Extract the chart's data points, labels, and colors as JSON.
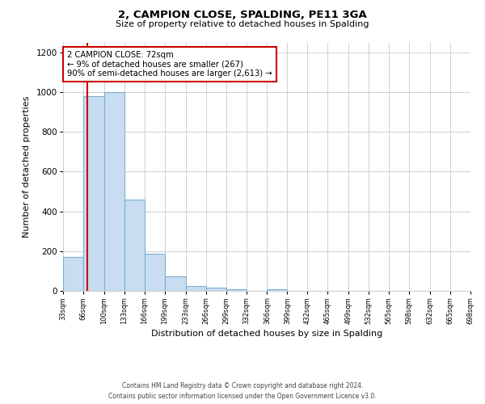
{
  "title": "2, CAMPION CLOSE, SPALDING, PE11 3GA",
  "subtitle": "Size of property relative to detached houses in Spalding",
  "xlabel": "Distribution of detached houses by size in Spalding",
  "ylabel": "Number of detached properties",
  "bar_edges": [
    33,
    66,
    100,
    133,
    166,
    199,
    233,
    266,
    299,
    332,
    366,
    399,
    432,
    465,
    499,
    532,
    565,
    598,
    632,
    665,
    698
  ],
  "bar_heights": [
    170,
    980,
    1000,
    460,
    185,
    75,
    25,
    15,
    10,
    0,
    10,
    0,
    0,
    0,
    0,
    0,
    0,
    0,
    0,
    0
  ],
  "bar_color": "#c8ddf0",
  "bar_edgecolor": "#7bafd4",
  "property_line_x": 72,
  "property_line_color": "#cc0000",
  "ylim": [
    0,
    1250
  ],
  "yticks": [
    0,
    200,
    400,
    600,
    800,
    1000,
    1200
  ],
  "annotation_title": "2 CAMPION CLOSE: 72sqm",
  "annotation_line1": "← 9% of detached houses are smaller (267)",
  "annotation_line2": "90% of semi-detached houses are larger (2,613) →",
  "annotation_box_color": "#ffffff",
  "annotation_box_edgecolor": "#cc0000",
  "footer_line1": "Contains HM Land Registry data © Crown copyright and database right 2024.",
  "footer_line2": "Contains public sector information licensed under the Open Government Licence v3.0.",
  "tick_labels": [
    "33sqm",
    "66sqm",
    "100sqm",
    "133sqm",
    "166sqm",
    "199sqm",
    "233sqm",
    "266sqm",
    "299sqm",
    "332sqm",
    "366sqm",
    "399sqm",
    "432sqm",
    "465sqm",
    "499sqm",
    "532sqm",
    "565sqm",
    "598sqm",
    "632sqm",
    "665sqm",
    "698sqm"
  ],
  "background_color": "#ffffff",
  "grid_color": "#d0d0d0",
  "figwidth": 6.0,
  "figheight": 5.0,
  "dpi": 100
}
